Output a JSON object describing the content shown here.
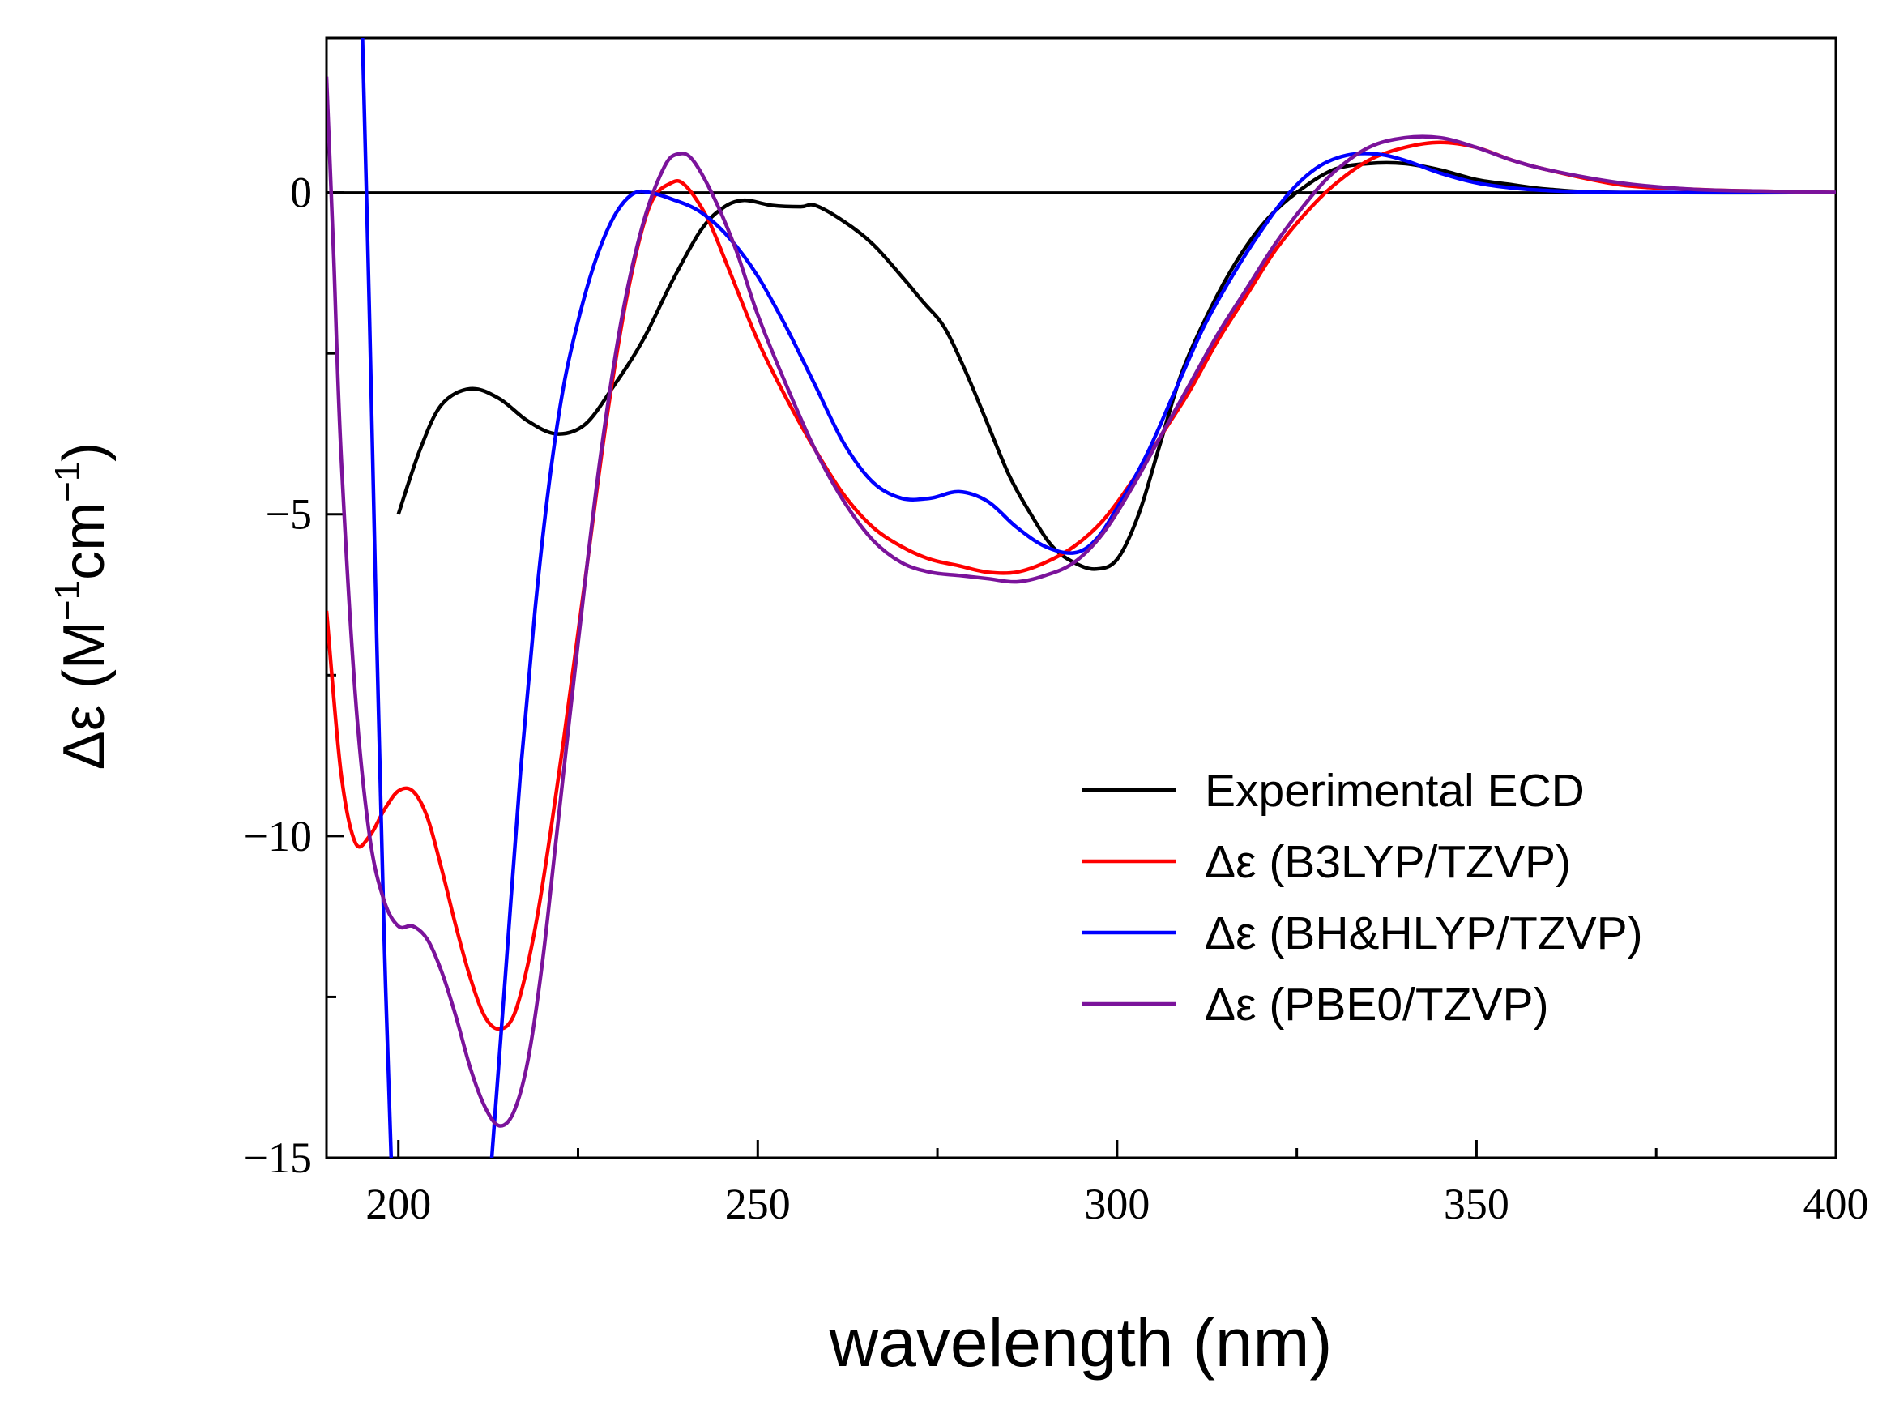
{
  "chart_data": {
    "type": "line",
    "title": "",
    "xlabel": "wavelength (nm)",
    "ylabel": {
      "main": "Δε (M",
      "sup1": "−1",
      "mid": "cm",
      "sup2": "−1",
      "end": ")"
    },
    "xlim": [
      190,
      400
    ],
    "ylim": [
      -15,
      2.4
    ],
    "x_ticks": [
      {
        "value": 200,
        "label": "200"
      },
      {
        "value": 250,
        "label": "250"
      },
      {
        "value": 300,
        "label": "300"
      },
      {
        "value": 350,
        "label": "350"
      },
      {
        "value": 400,
        "label": "400"
      }
    ],
    "x_minor_ticks": [
      225,
      275,
      325,
      375
    ],
    "y_ticks": [
      {
        "value": 0,
        "label": "0"
      },
      {
        "value": -5,
        "label": "−5"
      },
      {
        "value": -10,
        "label": "−10"
      },
      {
        "value": -15,
        "label": "−15"
      }
    ],
    "y_minor_ticks": [
      -2.5,
      -7.5,
      -12.5
    ],
    "zero_line": true,
    "grid": false,
    "legend_position": "bottom-right",
    "series": [
      {
        "name": "Experimental ECD",
        "color": "#000000",
        "points": [
          [
            200,
            -5.0
          ],
          [
            203,
            -4.0
          ],
          [
            206,
            -3.3
          ],
          [
            210,
            -3.05
          ],
          [
            214,
            -3.2
          ],
          [
            218,
            -3.55
          ],
          [
            222,
            -3.75
          ],
          [
            226,
            -3.6
          ],
          [
            230,
            -3.0
          ],
          [
            234,
            -2.3
          ],
          [
            238,
            -1.4
          ],
          [
            242,
            -0.6
          ],
          [
            245,
            -0.25
          ],
          [
            248,
            -0.12
          ],
          [
            252,
            -0.2
          ],
          [
            256,
            -0.22
          ],
          [
            258,
            -0.2
          ],
          [
            262,
            -0.45
          ],
          [
            266,
            -0.8
          ],
          [
            270,
            -1.3
          ],
          [
            273,
            -1.7
          ],
          [
            276,
            -2.1
          ],
          [
            279,
            -2.8
          ],
          [
            282,
            -3.6
          ],
          [
            285,
            -4.4
          ],
          [
            288,
            -5.0
          ],
          [
            291,
            -5.5
          ],
          [
            294,
            -5.75
          ],
          [
            297,
            -5.85
          ],
          [
            300,
            -5.7
          ],
          [
            303,
            -5.0
          ],
          [
            306,
            -3.9
          ],
          [
            309,
            -2.8
          ],
          [
            313,
            -1.8
          ],
          [
            317,
            -1.0
          ],
          [
            321,
            -0.4
          ],
          [
            325,
            0.0
          ],
          [
            330,
            0.35
          ],
          [
            335,
            0.45
          ],
          [
            340,
            0.45
          ],
          [
            345,
            0.35
          ],
          [
            350,
            0.2
          ],
          [
            355,
            0.12
          ],
          [
            360,
            0.05
          ],
          [
            370,
            0.0
          ],
          [
            400,
            0.0
          ]
        ]
      },
      {
        "name": "Δε (B3LYP/TZVP)",
        "color": "#ff0000",
        "points": [
          [
            190,
            -6.5
          ],
          [
            192,
            -9.0
          ],
          [
            194,
            -10.1
          ],
          [
            196,
            -10.0
          ],
          [
            198,
            -9.6
          ],
          [
            200,
            -9.3
          ],
          [
            202,
            -9.3
          ],
          [
            204,
            -9.7
          ],
          [
            206,
            -10.5
          ],
          [
            208,
            -11.4
          ],
          [
            210,
            -12.2
          ],
          [
            212,
            -12.8
          ],
          [
            214,
            -13.0
          ],
          [
            216,
            -12.8
          ],
          [
            218,
            -12.0
          ],
          [
            220,
            -10.8
          ],
          [
            223,
            -8.5
          ],
          [
            226,
            -6.0
          ],
          [
            229,
            -3.5
          ],
          [
            232,
            -1.5
          ],
          [
            235,
            -0.2
          ],
          [
            238,
            0.15
          ],
          [
            240,
            0.1
          ],
          [
            243,
            -0.4
          ],
          [
            246,
            -1.2
          ],
          [
            250,
            -2.3
          ],
          [
            254,
            -3.2
          ],
          [
            258,
            -4.0
          ],
          [
            262,
            -4.7
          ],
          [
            266,
            -5.2
          ],
          [
            270,
            -5.5
          ],
          [
            274,
            -5.7
          ],
          [
            278,
            -5.8
          ],
          [
            282,
            -5.9
          ],
          [
            286,
            -5.9
          ],
          [
            290,
            -5.75
          ],
          [
            294,
            -5.5
          ],
          [
            298,
            -5.1
          ],
          [
            302,
            -4.5
          ],
          [
            306,
            -3.8
          ],
          [
            310,
            -3.1
          ],
          [
            314,
            -2.3
          ],
          [
            318,
            -1.6
          ],
          [
            322,
            -0.9
          ],
          [
            326,
            -0.35
          ],
          [
            330,
            0.1
          ],
          [
            335,
            0.5
          ],
          [
            340,
            0.7
          ],
          [
            345,
            0.78
          ],
          [
            350,
            0.7
          ],
          [
            355,
            0.5
          ],
          [
            360,
            0.35
          ],
          [
            370,
            0.12
          ],
          [
            380,
            0.05
          ],
          [
            390,
            0.02
          ],
          [
            400,
            0.0
          ]
        ]
      },
      {
        "name": "Δε (BH&HLYP/TZVP)",
        "color": "#0000ff",
        "points": [
          [
            195,
            2.4
          ],
          [
            196,
            -2.0
          ],
          [
            197,
            -7.0
          ],
          [
            198,
            -11.5
          ],
          [
            199,
            -15.0
          ]
        ],
        "points2": [
          [
            213,
            -15.0
          ],
          [
            215,
            -12.0
          ],
          [
            217,
            -9.0
          ],
          [
            219,
            -6.5
          ],
          [
            221,
            -4.5
          ],
          [
            223,
            -3.0
          ],
          [
            225,
            -2.0
          ],
          [
            227,
            -1.2
          ],
          [
            229,
            -0.6
          ],
          [
            231,
            -0.2
          ],
          [
            233,
            0.0
          ],
          [
            235,
            0.0
          ],
          [
            238,
            -0.1
          ],
          [
            242,
            -0.3
          ],
          [
            246,
            -0.7
          ],
          [
            250,
            -1.3
          ],
          [
            254,
            -2.1
          ],
          [
            258,
            -3.0
          ],
          [
            262,
            -3.9
          ],
          [
            266,
            -4.5
          ],
          [
            270,
            -4.75
          ],
          [
            274,
            -4.75
          ],
          [
            278,
            -4.65
          ],
          [
            282,
            -4.8
          ],
          [
            286,
            -5.2
          ],
          [
            290,
            -5.5
          ],
          [
            294,
            -5.6
          ],
          [
            297,
            -5.4
          ],
          [
            300,
            -4.9
          ],
          [
            304,
            -4.1
          ],
          [
            308,
            -3.1
          ],
          [
            312,
            -2.1
          ],
          [
            316,
            -1.3
          ],
          [
            320,
            -0.6
          ],
          [
            324,
            0.0
          ],
          [
            328,
            0.4
          ],
          [
            332,
            0.58
          ],
          [
            336,
            0.6
          ],
          [
            340,
            0.5
          ],
          [
            345,
            0.3
          ],
          [
            350,
            0.15
          ],
          [
            355,
            0.07
          ],
          [
            360,
            0.03
          ],
          [
            370,
            0.0
          ],
          [
            400,
            0.0
          ]
        ]
      },
      {
        "name": "Δε (PBE0/TZVP)",
        "color": "#7b139b",
        "points": [
          [
            190,
            1.8
          ],
          [
            191,
            -1.0
          ],
          [
            192,
            -4.0
          ],
          [
            194,
            -7.8
          ],
          [
            196,
            -10.0
          ],
          [
            198,
            -11.0
          ],
          [
            200,
            -11.4
          ],
          [
            202,
            -11.4
          ],
          [
            204,
            -11.6
          ],
          [
            206,
            -12.1
          ],
          [
            208,
            -12.8
          ],
          [
            210,
            -13.6
          ],
          [
            212,
            -14.2
          ],
          [
            214,
            -14.5
          ],
          [
            216,
            -14.3
          ],
          [
            218,
            -13.5
          ],
          [
            220,
            -12.0
          ],
          [
            222,
            -10.0
          ],
          [
            225,
            -7.0
          ],
          [
            228,
            -4.2
          ],
          [
            231,
            -2.0
          ],
          [
            234,
            -0.5
          ],
          [
            237,
            0.4
          ],
          [
            239,
            0.6
          ],
          [
            241,
            0.5
          ],
          [
            244,
            -0.1
          ],
          [
            247,
            -0.9
          ],
          [
            250,
            -1.9
          ],
          [
            254,
            -3.0
          ],
          [
            258,
            -4.0
          ],
          [
            262,
            -4.8
          ],
          [
            266,
            -5.4
          ],
          [
            270,
            -5.75
          ],
          [
            274,
            -5.9
          ],
          [
            278,
            -5.95
          ],
          [
            282,
            -6.0
          ],
          [
            286,
            -6.05
          ],
          [
            290,
            -5.95
          ],
          [
            294,
            -5.75
          ],
          [
            298,
            -5.3
          ],
          [
            302,
            -4.6
          ],
          [
            306,
            -3.8
          ],
          [
            310,
            -3.0
          ],
          [
            314,
            -2.2
          ],
          [
            318,
            -1.5
          ],
          [
            322,
            -0.8
          ],
          [
            326,
            -0.2
          ],
          [
            330,
            0.3
          ],
          [
            335,
            0.7
          ],
          [
            340,
            0.85
          ],
          [
            345,
            0.85
          ],
          [
            350,
            0.7
          ],
          [
            355,
            0.5
          ],
          [
            360,
            0.35
          ],
          [
            370,
            0.15
          ],
          [
            380,
            0.05
          ],
          [
            390,
            0.02
          ],
          [
            400,
            0.0
          ]
        ]
      }
    ]
  }
}
